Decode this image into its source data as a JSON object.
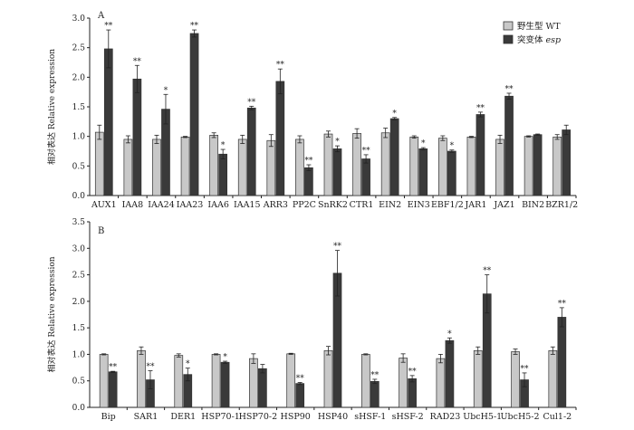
{
  "legend": {
    "wt_label": "野生型 WT",
    "mut_label_prefix": "突变体 ",
    "mut_label_italic": "esp",
    "colors": {
      "wt": "#c8c8c8",
      "mut": "#3a3a3a"
    },
    "placement": "top-right"
  },
  "chart_data": [
    {
      "type": "bar",
      "panel_label": "A",
      "ylabel": "相对表达 Relative expression",
      "ylim": [
        0,
        3.0
      ],
      "yticks": [
        "0.0",
        "0.5",
        "1.0",
        "1.5",
        "2.0",
        "2.5",
        "3.0"
      ],
      "grid": false,
      "categories": [
        "AUX1",
        "IAA8",
        "IAA24",
        "IAA23",
        "IAA6",
        "IAA15",
        "ARR3",
        "PP2C",
        "SnRK2",
        "CTR1",
        "EIN2",
        "EIN3",
        "EBF1/2",
        "JAR1",
        "JAZ1",
        "BIN2",
        "BZR1/2"
      ],
      "series": [
        {
          "name": "野生型 WT",
          "values": [
            1.07,
            0.95,
            0.95,
            0.99,
            1.02,
            0.95,
            0.93,
            0.95,
            1.04,
            1.05,
            1.06,
            0.99,
            0.97,
            0.99,
            0.95,
            1.0,
            0.99
          ],
          "errors": [
            0.12,
            0.06,
            0.07,
            0.01,
            0.04,
            0.07,
            0.1,
            0.06,
            0.05,
            0.08,
            0.08,
            0.02,
            0.04,
            0.01,
            0.07,
            0.01,
            0.04
          ]
        },
        {
          "name": "突变体 esp",
          "values": [
            2.48,
            1.97,
            1.46,
            2.74,
            0.7,
            1.48,
            1.93,
            0.47,
            0.79,
            0.62,
            1.3,
            0.79,
            0.75,
            1.37,
            1.68,
            1.03,
            1.11
          ],
          "errors": [
            0.32,
            0.23,
            0.25,
            0.06,
            0.08,
            0.03,
            0.21,
            0.05,
            0.05,
            0.07,
            0.02,
            0.02,
            0.02,
            0.04,
            0.05,
            0.01,
            0.08
          ]
        }
      ],
      "significance": [
        "**",
        "**",
        "*",
        "**",
        "*",
        "**",
        "**",
        "**",
        "*",
        "**",
        "*",
        "*",
        "*",
        "**",
        "**",
        "",
        ""
      ]
    },
    {
      "type": "bar",
      "panel_label": "B",
      "ylabel": "相对表达 Relative expression",
      "ylim": [
        0,
        3.5
      ],
      "yticks": [
        "0.0",
        "0.5",
        "1.0",
        "1.5",
        "2.0",
        "2.5",
        "3.0",
        "3.5"
      ],
      "grid": false,
      "categories": [
        "Bip",
        "SAR1",
        "DER1",
        "HSP70-1",
        "HSP70-2",
        "HSP90",
        "HSP40",
        "sHSF-1",
        "sHSF-2",
        "RAD23",
        "UbcH5-1",
        "UbcH5-2",
        "Cul1-2"
      ],
      "series": [
        {
          "name": "野生型 WT",
          "values": [
            1.0,
            1.07,
            0.98,
            1.0,
            0.92,
            1.01,
            1.07,
            1.0,
            0.93,
            0.92,
            1.07,
            1.05,
            1.07
          ],
          "errors": [
            0.01,
            0.07,
            0.03,
            0.01,
            0.09,
            0.01,
            0.08,
            0.01,
            0.08,
            0.08,
            0.07,
            0.05,
            0.07
          ]
        },
        {
          "name": "突变体 esp",
          "values": [
            0.67,
            0.52,
            0.62,
            0.85,
            0.73,
            0.45,
            2.53,
            0.49,
            0.54,
            1.26,
            2.14,
            0.52,
            1.7
          ],
          "errors": [
            0.01,
            0.17,
            0.12,
            0.02,
            0.08,
            0.02,
            0.43,
            0.04,
            0.06,
            0.05,
            0.36,
            0.13,
            0.18
          ]
        }
      ],
      "significance": [
        "**",
        "**",
        "*",
        "*",
        "",
        "**",
        "**",
        "**",
        "**",
        "*",
        "**",
        "**",
        "**"
      ]
    }
  ]
}
